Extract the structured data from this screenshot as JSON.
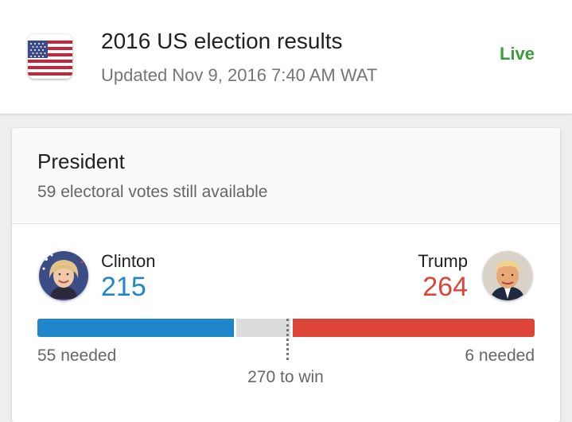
{
  "header": {
    "flag_icon": "us-flag-icon",
    "title": "2016 US election results",
    "updated": "Updated Nov 9, 2016 7:40 AM WAT",
    "status": "Live",
    "status_color": "#3a9c3a"
  },
  "race": {
    "title": "President",
    "subtitle": "59 electoral votes still available",
    "remaining_votes": 59,
    "threshold_label": "270 to win",
    "threshold": 270,
    "total": 538
  },
  "candidates": [
    {
      "name": "Clinton",
      "votes": "215",
      "needed": "55 needed",
      "color": "#1f86c9",
      "avatar_icon": "clinton-avatar"
    },
    {
      "name": "Trump",
      "votes": "264",
      "needed": "6 needed",
      "color": "#dd4538",
      "avatar_icon": "trump-avatar"
    }
  ],
  "remaining_color": "#dcdcdc"
}
